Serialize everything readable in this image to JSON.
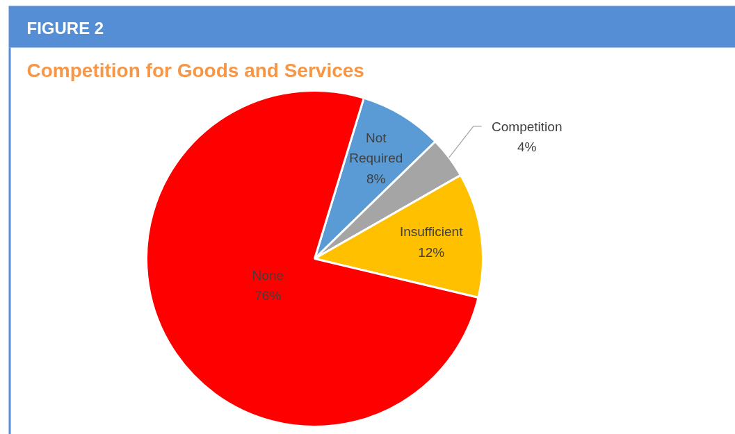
{
  "chart_data": {
    "type": "pie",
    "title": "Competition for Goods and Services",
    "annotations": [
      "FIGURE 2"
    ],
    "categories": [
      "Not Required",
      "Competition",
      "Insufficient",
      "None"
    ],
    "values": [
      8,
      4,
      12,
      76
    ],
    "value_labels": [
      "8%",
      "4%",
      "12%",
      "76%"
    ],
    "colors": [
      "#5b9bd5",
      "#a5a5a5",
      "#ffc000",
      "#ff0000"
    ]
  }
}
